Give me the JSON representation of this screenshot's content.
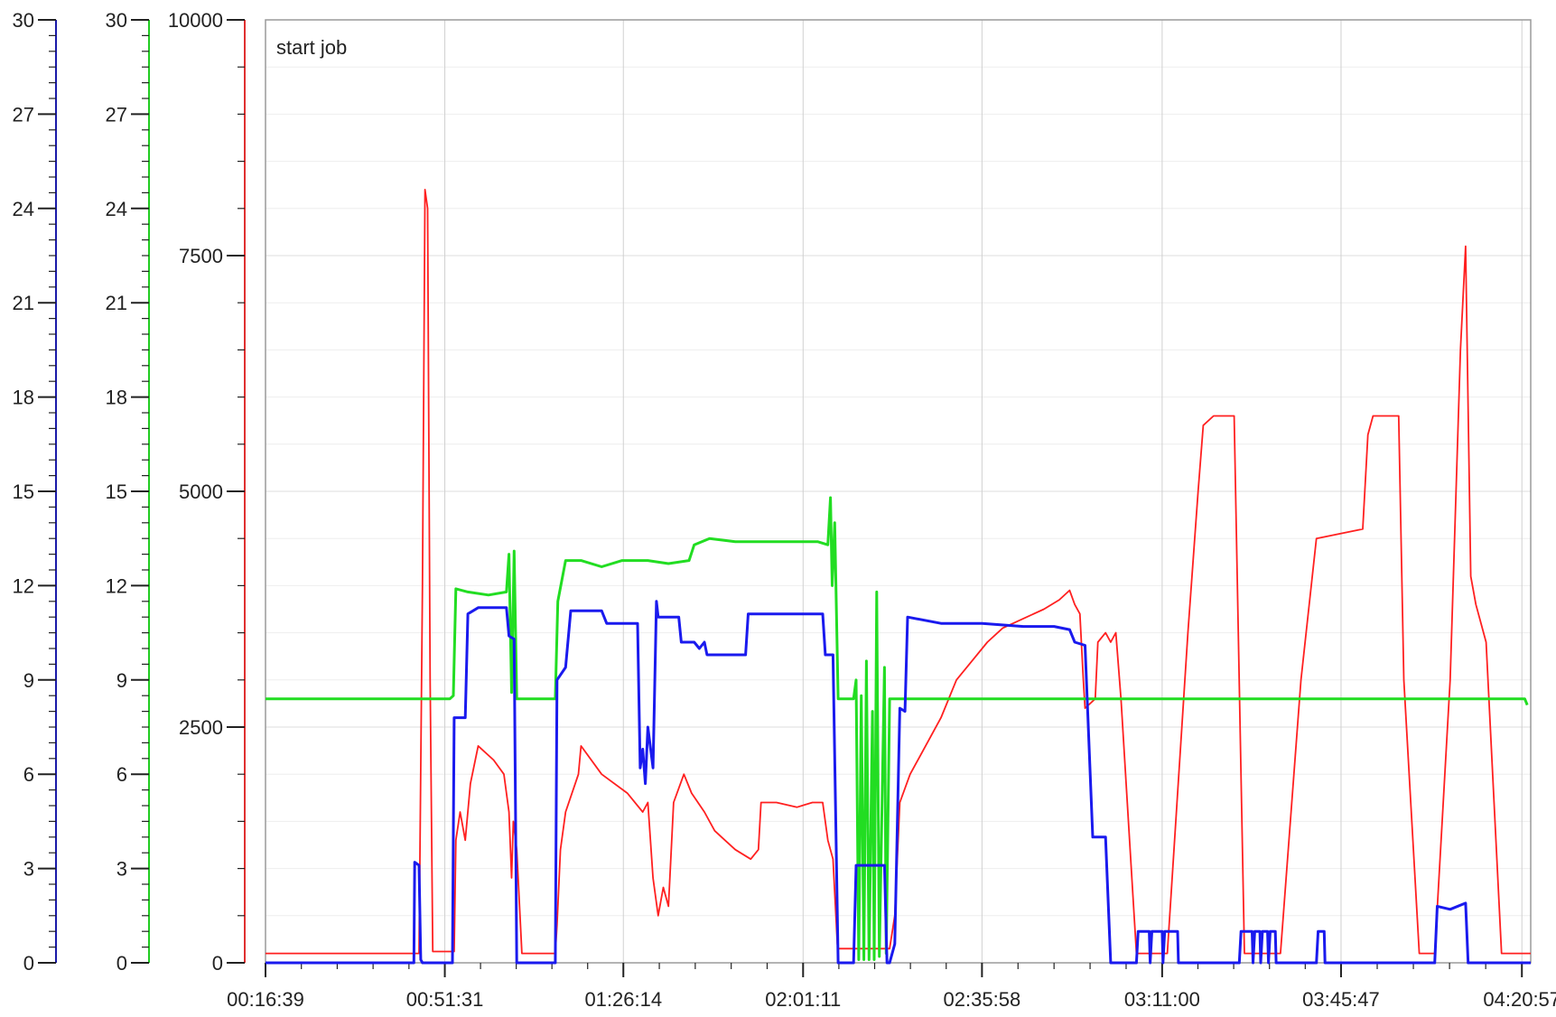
{
  "chart_data": {
    "type": "line",
    "title": "",
    "annotation": "start job",
    "x_ticks": [
      "00:16:39",
      "00:51:31",
      "01:26:14",
      "02:01:11",
      "02:35:58",
      "03:11:00",
      "03:45:47",
      "04:20:57"
    ],
    "x_range": [
      "00:16:39",
      "04:22:40"
    ],
    "axes": [
      {
        "name": "blue-axis",
        "color": "#1a1aa8",
        "ylim": [
          0,
          30
        ],
        "ticks": [
          0,
          3,
          6,
          9,
          12,
          15,
          18,
          21,
          24,
          27,
          30
        ],
        "tick_labels": [
          "0",
          "3",
          "6",
          "9",
          "12",
          "15",
          "18",
          "21",
          "24",
          "27",
          "30"
        ]
      },
      {
        "name": "green-axis",
        "color": "#22cc22",
        "ylim": [
          0,
          30
        ],
        "ticks": [
          0,
          3,
          6,
          9,
          12,
          15,
          18,
          21,
          24,
          27,
          30
        ],
        "tick_labels": [
          "0",
          "3",
          "6",
          "9",
          "12",
          "15",
          "18",
          "21",
          "24",
          "27",
          "30"
        ]
      },
      {
        "name": "red-axis",
        "color": "#e03030",
        "ylim": [
          0,
          10000
        ],
        "ticks": [
          0,
          2500,
          5000,
          7500,
          10000
        ],
        "tick_labels": [
          "0",
          "2500",
          "5000",
          "7500",
          "10000"
        ]
      }
    ],
    "grid": true,
    "series": [
      {
        "color": "#ff2020",
        "axis": 2,
        "width": 1.8,
        "points": [
          [
            "00:16:39",
            100
          ],
          [
            "00:45:00",
            100
          ],
          [
            "00:46:30",
            100
          ],
          [
            "00:47:10",
            4000
          ],
          [
            "00:47:40",
            8200
          ],
          [
            "00:48:10",
            8000
          ],
          [
            "00:48:40",
            3000
          ],
          [
            "00:49:10",
            120
          ],
          [
            "00:53:20",
            120
          ],
          [
            "00:53:40",
            1300
          ],
          [
            "00:54:30",
            1600
          ],
          [
            "00:55:30",
            1300
          ],
          [
            "00:56:30",
            1900
          ],
          [
            "00:58:00",
            2300
          ],
          [
            "01:01:00",
            2150
          ],
          [
            "01:03:00",
            2000
          ],
          [
            "01:04:00",
            1600
          ],
          [
            "01:04:30",
            900
          ],
          [
            "01:04:50",
            1500
          ],
          [
            "01:05:30",
            1200
          ],
          [
            "01:06:30",
            100
          ],
          [
            "01:13:00",
            100
          ],
          [
            "01:13:20",
            400
          ],
          [
            "01:14:00",
            1200
          ],
          [
            "01:15:00",
            1600
          ],
          [
            "01:17:30",
            2000
          ],
          [
            "01:18:00",
            2300
          ],
          [
            "01:22:00",
            2000
          ],
          [
            "01:27:00",
            1800
          ],
          [
            "01:30:00",
            1600
          ],
          [
            "01:31:00",
            1700
          ],
          [
            "01:32:00",
            900
          ],
          [
            "01:33:00",
            500
          ],
          [
            "01:34:00",
            800
          ],
          [
            "01:35:00",
            600
          ],
          [
            "01:36:00",
            1700
          ],
          [
            "01:38:00",
            2000
          ],
          [
            "01:39:30",
            1800
          ],
          [
            "01:42:00",
            1600
          ],
          [
            "01:44:00",
            1400
          ],
          [
            "01:46:00",
            1300
          ],
          [
            "01:48:00",
            1200
          ],
          [
            "01:51:00",
            1100
          ],
          [
            "01:52:30",
            1200
          ],
          [
            "01:53:00",
            1700
          ],
          [
            "01:56:00",
            1700
          ],
          [
            "02:00:00",
            1650
          ],
          [
            "02:03:00",
            1700
          ],
          [
            "02:05:00",
            1700
          ],
          [
            "02:06:00",
            1300
          ],
          [
            "02:07:00",
            1100
          ],
          [
            "02:07:50",
            200
          ],
          [
            "02:08:00",
            150
          ],
          [
            "02:13:00",
            150
          ],
          [
            "02:18:00",
            150
          ],
          [
            "02:19:00",
            500
          ],
          [
            "02:20:00",
            1700
          ],
          [
            "02:22:00",
            2000
          ],
          [
            "02:25:00",
            2300
          ],
          [
            "02:28:00",
            2600
          ],
          [
            "02:31:00",
            3000
          ],
          [
            "02:34:00",
            3200
          ],
          [
            "02:37:00",
            3400
          ],
          [
            "02:40:00",
            3550
          ],
          [
            "02:44:00",
            3650
          ],
          [
            "02:48:00",
            3750
          ],
          [
            "02:51:00",
            3850
          ],
          [
            "02:53:00",
            3950
          ],
          [
            "02:54:00",
            3800
          ],
          [
            "02:55:00",
            3700
          ],
          [
            "02:55:40",
            3000
          ],
          [
            "02:56:00",
            2700
          ],
          [
            "02:58:00",
            2800
          ],
          [
            "02:58:30",
            3400
          ],
          [
            "03:00:00",
            3500
          ],
          [
            "03:01:00",
            3400
          ],
          [
            "03:02:00",
            3500
          ],
          [
            "03:03:00",
            2800
          ],
          [
            "03:06:00",
            100
          ],
          [
            "03:12:00",
            100
          ],
          [
            "03:16:00",
            3500
          ],
          [
            "03:18:00",
            5000
          ],
          [
            "03:19:00",
            5700
          ],
          [
            "03:21:00",
            5800
          ],
          [
            "03:25:00",
            5800
          ],
          [
            "03:27:00",
            100
          ],
          [
            "03:34:00",
            100
          ],
          [
            "03:38:00",
            3000
          ],
          [
            "03:41:00",
            4500
          ],
          [
            "03:50:00",
            4600
          ],
          [
            "03:51:00",
            5600
          ],
          [
            "03:52:00",
            5800
          ],
          [
            "03:57:00",
            5800
          ],
          [
            "03:58:00",
            3000
          ],
          [
            "04:01:00",
            100
          ],
          [
            "04:04:00",
            100
          ],
          [
            "04:07:00",
            3000
          ],
          [
            "04:09:00",
            6500
          ],
          [
            "04:10:00",
            7600
          ],
          [
            "04:11:00",
            4100
          ],
          [
            "04:12:00",
            3800
          ],
          [
            "04:14:00",
            3400
          ],
          [
            "04:17:00",
            100
          ],
          [
            "04:22:40",
            100
          ]
        ]
      },
      {
        "color": "#22dd22",
        "axis": 1,
        "width": 3,
        "points": [
          [
            "00:16:39",
            8.4
          ],
          [
            "00:52:30",
            8.4
          ],
          [
            "00:53:10",
            8.5
          ],
          [
            "00:53:40",
            11.9
          ],
          [
            "00:56:00",
            11.8
          ],
          [
            "01:00:00",
            11.7
          ],
          [
            "01:03:30",
            11.8
          ],
          [
            "01:04:00",
            13.0
          ],
          [
            "01:04:30",
            8.6
          ],
          [
            "01:05:00",
            13.1
          ],
          [
            "01:05:30",
            8.4
          ],
          [
            "01:13:00",
            8.4
          ],
          [
            "01:13:30",
            11.5
          ],
          [
            "01:15:00",
            12.8
          ],
          [
            "01:18:00",
            12.8
          ],
          [
            "01:22:00",
            12.6
          ],
          [
            "01:26:00",
            12.8
          ],
          [
            "01:31:00",
            12.8
          ],
          [
            "01:35:00",
            12.7
          ],
          [
            "01:39:00",
            12.8
          ],
          [
            "01:40:00",
            13.3
          ],
          [
            "01:43:00",
            13.5
          ],
          [
            "01:48:00",
            13.4
          ],
          [
            "01:53:00",
            13.4
          ],
          [
            "01:58:00",
            13.4
          ],
          [
            "02:04:00",
            13.4
          ],
          [
            "02:06:00",
            13.3
          ],
          [
            "02:06:30",
            14.8
          ],
          [
            "02:06:50",
            12.0
          ],
          [
            "02:07:20",
            14.0
          ],
          [
            "02:08:00",
            8.4
          ],
          [
            "02:11:00",
            8.4
          ],
          [
            "02:11:30",
            9.0
          ],
          [
            "02:12:00",
            0.1
          ],
          [
            "02:12:30",
            8.5
          ],
          [
            "02:13:00",
            0.1
          ],
          [
            "02:13:30",
            9.6
          ],
          [
            "02:14:00",
            0.1
          ],
          [
            "02:14:40",
            8.0
          ],
          [
            "02:15:00",
            0.1
          ],
          [
            "02:15:30",
            11.8
          ],
          [
            "02:16:00",
            0.2
          ],
          [
            "02:17:00",
            9.4
          ],
          [
            "02:17:20",
            0.3
          ],
          [
            "02:18:00",
            8.4
          ],
          [
            "02:19:00",
            8.4
          ],
          [
            "03:10:00",
            8.4
          ],
          [
            "03:40:00",
            8.4
          ],
          [
            "04:21:30",
            8.4
          ],
          [
            "04:22:00",
            8.2
          ]
        ]
      },
      {
        "color": "#1a1aee",
        "axis": 0,
        "width": 3,
        "points": [
          [
            "00:16:39",
            0
          ],
          [
            "00:45:30",
            0
          ],
          [
            "00:45:40",
            3.2
          ],
          [
            "00:46:30",
            3.1
          ],
          [
            "00:46:50",
            0.1
          ],
          [
            "00:47:10",
            0
          ],
          [
            "00:53:00",
            0
          ],
          [
            "00:53:20",
            7.8
          ],
          [
            "00:55:30",
            7.8
          ],
          [
            "00:56:00",
            11.1
          ],
          [
            "00:58:00",
            11.3
          ],
          [
            "01:02:00",
            11.3
          ],
          [
            "01:03:30",
            11.3
          ],
          [
            "01:04:00",
            10.4
          ],
          [
            "01:05:00",
            10.3
          ],
          [
            "01:05:30",
            0
          ],
          [
            "01:13:00",
            0
          ],
          [
            "01:13:20",
            9.0
          ],
          [
            "01:15:00",
            9.4
          ],
          [
            "01:16:00",
            11.2
          ],
          [
            "01:22:00",
            11.2
          ],
          [
            "01:23:00",
            10.8
          ],
          [
            "01:29:00",
            10.8
          ],
          [
            "01:29:30",
            6.2
          ],
          [
            "01:30:00",
            6.8
          ],
          [
            "01:30:30",
            5.7
          ],
          [
            "01:31:00",
            7.5
          ],
          [
            "01:32:00",
            6.2
          ],
          [
            "01:32:40",
            11.5
          ],
          [
            "01:33:00",
            11.0
          ],
          [
            "01:37:00",
            11.0
          ],
          [
            "01:37:30",
            10.2
          ],
          [
            "01:40:00",
            10.2
          ],
          [
            "01:41:00",
            10.0
          ],
          [
            "01:42:00",
            10.2
          ],
          [
            "01:42:30",
            9.8
          ],
          [
            "01:50:00",
            9.8
          ],
          [
            "01:50:30",
            11.1
          ],
          [
            "01:58:00",
            11.1
          ],
          [
            "02:05:00",
            11.1
          ],
          [
            "02:05:30",
            9.8
          ],
          [
            "02:07:00",
            9.8
          ],
          [
            "02:08:00",
            0
          ],
          [
            "02:11:00",
            0
          ],
          [
            "02:11:30",
            3.1
          ],
          [
            "02:17:00",
            3.1
          ],
          [
            "02:17:30",
            0
          ],
          [
            "02:18:00",
            0
          ],
          [
            "02:19:00",
            0.6
          ],
          [
            "02:20:00",
            8.1
          ],
          [
            "02:21:00",
            8.0
          ],
          [
            "02:21:30",
            11.0
          ],
          [
            "02:28:00",
            10.8
          ],
          [
            "02:36:00",
            10.8
          ],
          [
            "02:44:00",
            10.7
          ],
          [
            "02:50:00",
            10.7
          ],
          [
            "02:53:00",
            10.6
          ],
          [
            "02:54:00",
            10.2
          ],
          [
            "02:56:00",
            10.1
          ],
          [
            "02:57:30",
            4.0
          ],
          [
            "03:00:00",
            4.0
          ],
          [
            "03:01:00",
            0
          ],
          [
            "03:06:00",
            0
          ],
          [
            "03:06:20",
            1.0
          ],
          [
            "03:08:30",
            1.0
          ],
          [
            "03:08:40",
            0
          ],
          [
            "03:09:00",
            1.0
          ],
          [
            "03:11:00",
            1.0
          ],
          [
            "03:11:10",
            0
          ],
          [
            "03:11:30",
            1.0
          ],
          [
            "03:14:00",
            1.0
          ],
          [
            "03:14:10",
            0
          ],
          [
            "03:26:00",
            0
          ],
          [
            "03:26:20",
            1.0
          ],
          [
            "03:28:30",
            1.0
          ],
          [
            "03:28:40",
            0
          ],
          [
            "03:29:00",
            1.0
          ],
          [
            "03:30:00",
            1.0
          ],
          [
            "03:30:10",
            0
          ],
          [
            "03:30:30",
            1.0
          ],
          [
            "03:31:30",
            1.0
          ],
          [
            "03:31:40",
            0
          ],
          [
            "03:32:00",
            1.0
          ],
          [
            "03:33:00",
            1.0
          ],
          [
            "03:33:10",
            0
          ],
          [
            "03:41:00",
            0
          ],
          [
            "03:41:20",
            1.0
          ],
          [
            "03:42:30",
            1.0
          ],
          [
            "03:42:40",
            0
          ],
          [
            "04:04:00",
            0
          ],
          [
            "04:04:30",
            1.8
          ],
          [
            "04:07:00",
            1.7
          ],
          [
            "04:10:00",
            1.9
          ],
          [
            "04:10:30",
            0
          ],
          [
            "04:22:40",
            0
          ]
        ]
      }
    ]
  }
}
